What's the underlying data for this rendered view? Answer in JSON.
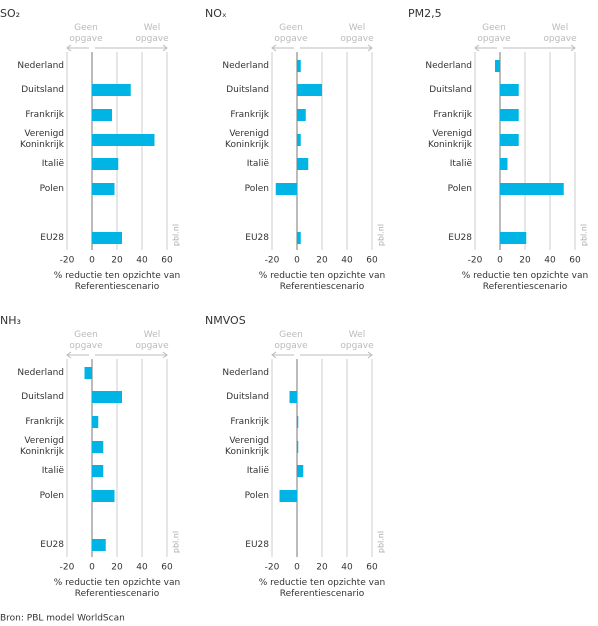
{
  "source": "Bron: PBL model WorldScan",
  "chart_data": [
    {
      "type": "hbar",
      "title": "SO₂",
      "categories": [
        "Nederland",
        "Duitsland",
        "Frankrijk",
        "Verenigd Koninkrijk",
        "Italië",
        "Polen",
        "EU28"
      ],
      "values": [
        0,
        31,
        16,
        50,
        21,
        18,
        24
      ],
      "color": "#00b5e6",
      "xlim": [
        -20,
        60
      ],
      "xticks": [
        -20,
        0,
        20,
        40,
        60
      ],
      "xlabel": "% reductie ten opzichte van Referentiescenario",
      "annotations": [
        "Geen opgave",
        "Wel opgave"
      ],
      "watermark": "pbl.nl",
      "grid": true
    },
    {
      "type": "hbar",
      "title": "NOₓ",
      "categories": [
        "Nederland",
        "Duitsland",
        "Frankrijk",
        "Verenigd Koninkrijk",
        "Italië",
        "Polen",
        "EU28"
      ],
      "values": [
        3,
        20,
        7,
        3,
        9,
        -17,
        3
      ],
      "color": "#00b5e6",
      "xlim": [
        -20,
        60
      ],
      "xticks": [
        -20,
        0,
        20,
        40,
        60
      ],
      "xlabel": "% reductie ten opzichte van Referentiescenario",
      "annotations": [
        "Geen opgave",
        "Wel opgave"
      ],
      "watermark": "pbl.nl",
      "grid": true
    },
    {
      "type": "hbar",
      "title": "PM2,5",
      "categories": [
        "Nederland",
        "Duitsland",
        "Frankrijk",
        "Verenigd Koninkrijk",
        "Italië",
        "Polen",
        "EU28"
      ],
      "values": [
        -4,
        15,
        15,
        15,
        6,
        51,
        21
      ],
      "color": "#00b5e6",
      "xlim": [
        -20,
        60
      ],
      "xticks": [
        -20,
        0,
        20,
        40,
        60
      ],
      "xlabel": "% reductie ten opzichte van Referentiescenario",
      "annotations": [
        "Geen opgave",
        "Wel opgave"
      ],
      "watermark": "pbl.nl",
      "grid": true
    },
    {
      "type": "hbar",
      "title": "NH₃",
      "categories": [
        "Nederland",
        "Duitsland",
        "Frankrijk",
        "Verenigd Koninkrijk",
        "Italië",
        "Polen",
        "EU28"
      ],
      "values": [
        -6,
        24,
        5,
        9,
        9,
        18,
        11
      ],
      "color": "#00b5e6",
      "xlim": [
        -20,
        60
      ],
      "xticks": [
        -20,
        0,
        20,
        40,
        60
      ],
      "xlabel": "% reductie ten opzichte van Referentiescenario",
      "annotations": [
        "Geen opgave",
        "Wel opgave"
      ],
      "watermark": "pbl.nl",
      "grid": true
    },
    {
      "type": "hbar",
      "title": "NMVOS",
      "categories": [
        "Nederland",
        "Duitsland",
        "Frankrijk",
        "Verenigd Koninkrijk",
        "Italië",
        "Polen",
        "EU28"
      ],
      "values": [
        0,
        -6,
        1,
        1,
        5,
        -14,
        0
      ],
      "color": "#00b5e6",
      "xlim": [
        -20,
        60
      ],
      "xticks": [
        -20,
        0,
        20,
        40,
        60
      ],
      "xlabel": "% reductie ten opzichte van Referentiescenario",
      "annotations": [
        "Geen opgave",
        "Wel opgave"
      ],
      "watermark": "pbl.nl",
      "grid": true
    }
  ]
}
